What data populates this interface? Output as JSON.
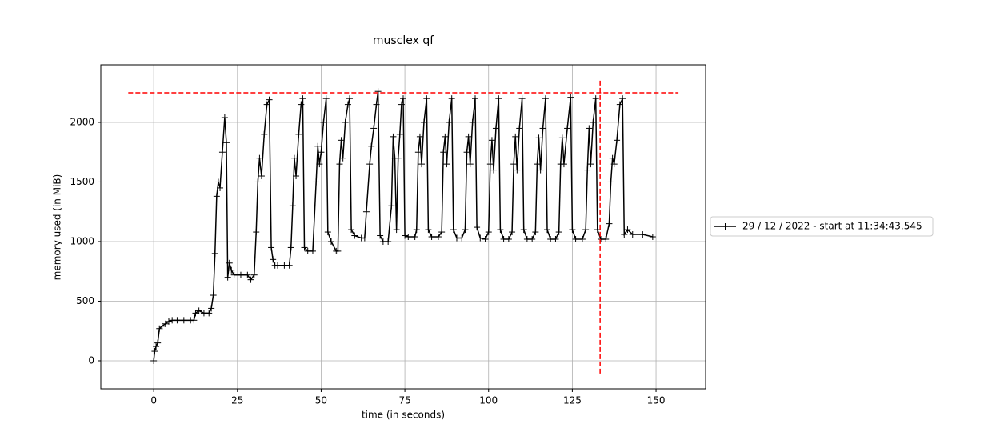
{
  "chart_data": {
    "type": "line",
    "title": "musclex qf",
    "xlabel": "time (in seconds)",
    "ylabel": "memory used (in MiB)",
    "xlim": [
      -15.8,
      164.8
    ],
    "ylim": [
      -235,
      2483
    ],
    "xticks": [
      0,
      25,
      50,
      75,
      100,
      125,
      150
    ],
    "yticks": [
      0,
      500,
      1000,
      1500,
      2000
    ],
    "grid": true,
    "legend": "center right outside",
    "marker": "+",
    "series": [
      {
        "name": "29 / 12 / 2022 - start at 11:34:43.545",
        "color": "#000000",
        "x": [
          0,
          0.3,
          0.7,
          1.2,
          1.7,
          2.5,
          3.5,
          4.5,
          5.5,
          7,
          9,
          11,
          12,
          12.5,
          13.5,
          15,
          16.5,
          17.2,
          17.8,
          18.3,
          18.8,
          19.3,
          19.8,
          20.5,
          21.2,
          21.7,
          22.1,
          22.6,
          23.2,
          24,
          26,
          28,
          29,
          30,
          30.6,
          31.1,
          31.6,
          32.2,
          33,
          33.8,
          34.5,
          35.1,
          35.6,
          36.2,
          37,
          39,
          40.5,
          41,
          41.5,
          42,
          42.5,
          43.3,
          44,
          44.5,
          45,
          46,
          47.5,
          48.5,
          49,
          49.5,
          50,
          50.7,
          51.5,
          52,
          53,
          54.5,
          55,
          55.5,
          56,
          56.5,
          57.2,
          58,
          58.5,
          59,
          60,
          62,
          63,
          63.5,
          64.5,
          65,
          65.7,
          66.5,
          67,
          67.6,
          68.5,
          70,
          71,
          71.5,
          72,
          72.5,
          73,
          73.5,
          74,
          74.5,
          75,
          76,
          78,
          78.5,
          79,
          79.5,
          80,
          80.7,
          81.5,
          82,
          83,
          85,
          86,
          86.5,
          87,
          87.5,
          88.2,
          89,
          89.5,
          90.5,
          92,
          93,
          93.5,
          94,
          94.5,
          95.2,
          96,
          96.5,
          97.5,
          99,
          100,
          100.5,
          101,
          101.5,
          102.2,
          103,
          103.5,
          104.5,
          106,
          107,
          107.5,
          108,
          108.5,
          109.2,
          110,
          110.5,
          111.5,
          113,
          114,
          114.5,
          115,
          115.5,
          116.2,
          117,
          117.5,
          118.5,
          120,
          121,
          121.5,
          122,
          122.5,
          123.5,
          124.5,
          125,
          126,
          128,
          129,
          129.5,
          130,
          130.5,
          131.2,
          132,
          132.5,
          133.5,
          135,
          136,
          136.5,
          137,
          137.5,
          138.3,
          139.2,
          140,
          140.5,
          141.5,
          143,
          146,
          149
        ],
        "values": [
          0,
          80,
          120,
          150,
          270,
          290,
          310,
          330,
          340,
          340,
          340,
          340,
          340,
          400,
          420,
          400,
          400,
          440,
          550,
          900,
          1380,
          1500,
          1450,
          1750,
          2040,
          1830,
          700,
          820,
          760,
          720,
          720,
          720,
          680,
          720,
          1080,
          1500,
          1700,
          1550,
          1900,
          2150,
          2190,
          950,
          850,
          800,
          800,
          800,
          800,
          950,
          1300,
          1700,
          1550,
          1900,
          2150,
          2200,
          950,
          920,
          920,
          1500,
          1800,
          1650,
          1750,
          2000,
          2200,
          1080,
          1000,
          920,
          920,
          1650,
          1850,
          1700,
          2000,
          2150,
          2200,
          1100,
          1050,
          1030,
          1030,
          1250,
          1650,
          1800,
          1950,
          2150,
          2260,
          1050,
          1000,
          1000,
          1300,
          1880,
          1700,
          1100,
          1700,
          1900,
          2150,
          2200,
          1050,
          1040,
          1040,
          1100,
          1750,
          1880,
          1650,
          2000,
          2200,
          1100,
          1040,
          1040,
          1080,
          1750,
          1880,
          1650,
          2000,
          2200,
          1100,
          1030,
          1030,
          1100,
          1750,
          1880,
          1650,
          2000,
          2200,
          1120,
          1030,
          1020,
          1080,
          1650,
          1850,
          1600,
          1950,
          2200,
          1100,
          1020,
          1020,
          1080,
          1650,
          1880,
          1600,
          1950,
          2200,
          1100,
          1020,
          1020,
          1080,
          1650,
          1870,
          1600,
          1950,
          2200,
          1100,
          1020,
          1020,
          1080,
          1650,
          1870,
          1650,
          1950,
          2210,
          1100,
          1020,
          1020,
          1100,
          1600,
          1950,
          1650,
          2000,
          2200,
          1100,
          1020,
          1020,
          1150,
          1500,
          1700,
          1650,
          1850,
          2150,
          2200,
          1060,
          1100,
          1060,
          1060,
          1040
        ]
      }
    ],
    "reference_lines": [
      {
        "orientation": "horizontal",
        "value": 2248,
        "span": [
          -7.6,
          156.7
        ],
        "color": "#ff0000"
      },
      {
        "orientation": "vertical",
        "value": 133.3,
        "span": [
          -107,
          2356
        ],
        "color": "#ff0000"
      }
    ]
  }
}
